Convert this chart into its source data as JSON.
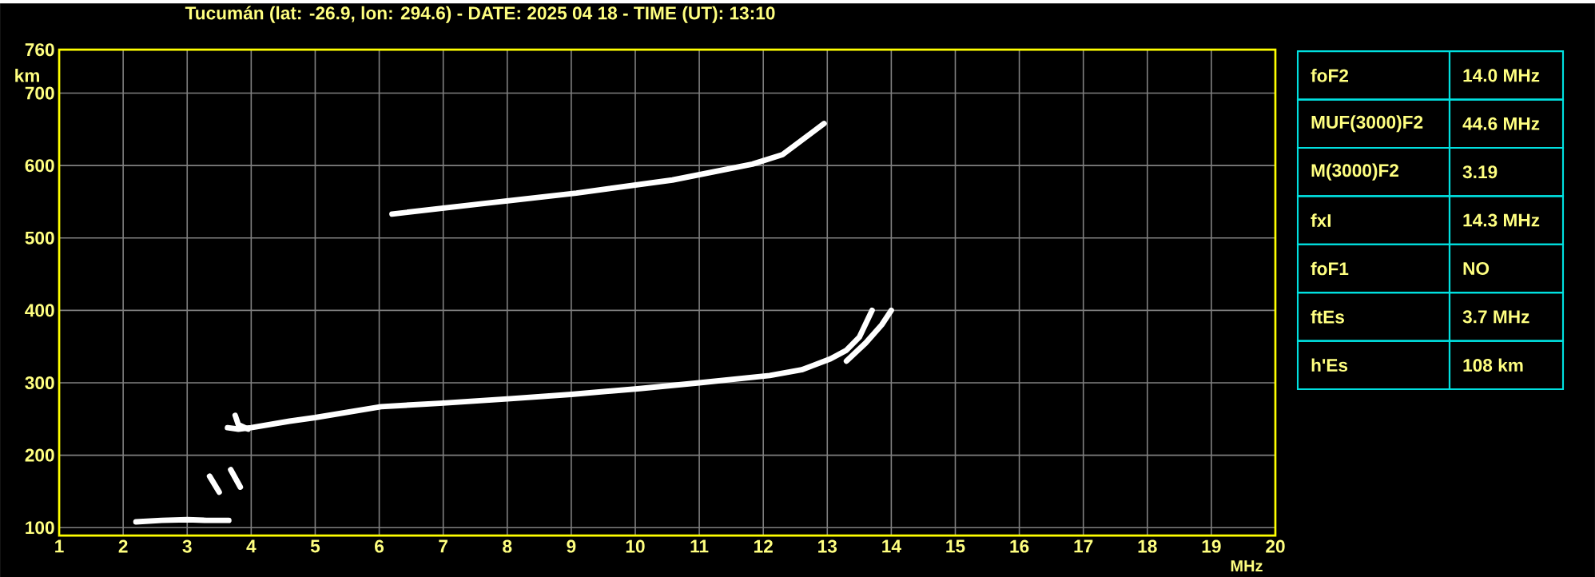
{
  "chart_data": [
    {
      "type": "line",
      "title": "Tucumán (lat: -26.9, lon: 294.6) - DATE: 2025 04 18 - TIME (UT): 13:10",
      "xlabel": "MHz",
      "ylabel": "km",
      "xlim": [
        1,
        20
      ],
      "ylim": [
        89,
        760
      ],
      "xticks": [
        1,
        2,
        3,
        4,
        5,
        6,
        7,
        8,
        9,
        10,
        11,
        12,
        13,
        14,
        15,
        16,
        17,
        18,
        19,
        20
      ],
      "yticks": [
        100,
        200,
        300,
        400,
        500,
        600,
        700,
        760
      ],
      "grid": true,
      "marker": "none",
      "line_style": "solid",
      "series": [
        {
          "color": "#ffffff",
          "x": [
            3.63,
            3.8,
            4.0,
            4.6,
            5.0,
            6.03,
            7.0,
            8.05,
            9.0,
            10.07,
            11.0,
            12.1,
            12.6,
            13.05,
            13.3,
            13.5,
            13.7
          ],
          "values": [
            238,
            236,
            238,
            247,
            252,
            267,
            272,
            278,
            284,
            292,
            300,
            310,
            318,
            333,
            345,
            363,
            400
          ]
        },
        {
          "color": "#ffffff",
          "x": [
            13.3,
            13.6,
            13.85,
            14.0
          ],
          "values": [
            330,
            355,
            380,
            400
          ]
        },
        {
          "color": "#ffffff",
          "x": [
            3.75,
            3.8,
            3.95
          ],
          "values": [
            255,
            242,
            236
          ]
        },
        {
          "color": "#ffffff",
          "x": [
            6.2,
            7.58,
            9.08,
            10.58,
            11.83,
            12.3,
            12.95
          ],
          "values": [
            533,
            547,
            562,
            580,
            602,
            615,
            658
          ]
        },
        {
          "color": "#ffffff",
          "x": [
            2.2,
            2.6,
            3.0,
            3.3,
            3.65
          ],
          "values": [
            108,
            110,
            111,
            110,
            110
          ]
        },
        {
          "color": "#ffffff",
          "x": [
            3.35,
            3.5
          ],
          "values": [
            171,
            149
          ]
        },
        {
          "color": "#ffffff",
          "x": [
            3.68,
            3.83
          ],
          "values": [
            180,
            156
          ]
        }
      ]
    },
    {
      "type": "other",
      "categories": [
        "foF2",
        "MUF(3000)F2",
        "M(3000)F2",
        "fxI",
        "foF1",
        "ftEs",
        "h'Es"
      ],
      "value_labels": [
        "14.0 MHz",
        "44.6 MHz",
        "3.19",
        "14.3 MHz",
        "NO",
        "3.7 MHz",
        "108 km"
      ]
    }
  ]
}
